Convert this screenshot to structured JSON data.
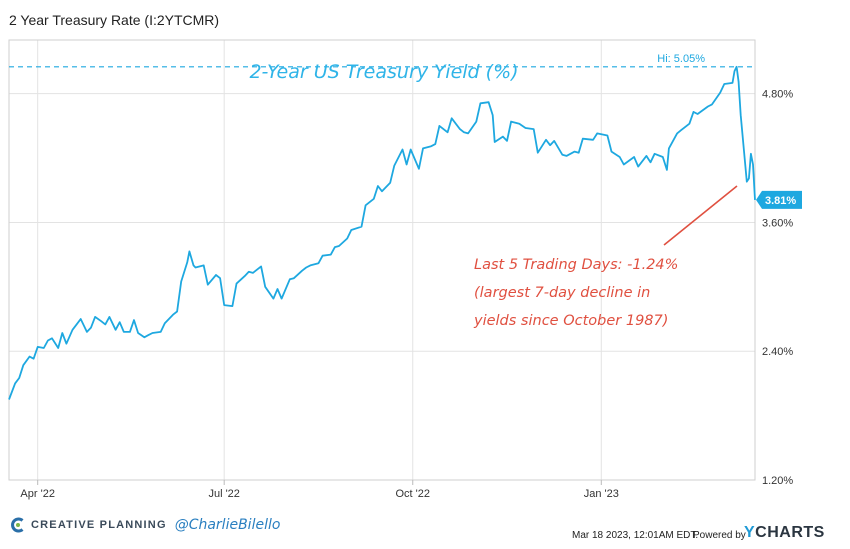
{
  "header": {
    "title": "2 Year Treasury Rate (I:2YTCMR)"
  },
  "colors": {
    "line": "#1ea8e0",
    "annotation_text": "#e05040",
    "annotation_line": "#e05040",
    "badge": "#1ea8e0",
    "grid": "#e3e3e3"
  },
  "footer": {
    "brand": "CREATIVE PLANNING",
    "handle": "@CharlieBilello",
    "timestamp": "Mar 18 2023, 12:01AM EDT.",
    "powered_by": "Powered by",
    "provider_prefix": "Y",
    "provider_rest": "CHARTS"
  },
  "chart_data": {
    "type": "line",
    "title": "2-Year US Treasury Yield (%)",
    "ylim": [
      1.2,
      5.3
    ],
    "xlim": [
      "2022-03-18",
      "2023-03-17"
    ],
    "grid": true,
    "y_ticks": [
      {
        "value": 4.8,
        "label": "4.80%"
      },
      {
        "value": 3.6,
        "label": "3.60%"
      },
      {
        "value": 2.4,
        "label": "2.40%"
      },
      {
        "value": 1.2,
        "label": "1.20%"
      }
    ],
    "x_ticks": [
      {
        "date": "2022-04-01",
        "label": "Apr '22"
      },
      {
        "date": "2022-07-01",
        "label": "Jul '22"
      },
      {
        "date": "2022-10-01",
        "label": "Oct '22"
      },
      {
        "date": "2023-01-01",
        "label": "Jan '23"
      }
    ],
    "hi": {
      "value": 5.05,
      "label": "Hi: 5.05%"
    },
    "last": {
      "value": 3.81,
      "label": "3.81%"
    },
    "annotations": [
      "Last 5 Trading Days: -1.24%",
      "(largest 7-day decline in",
      "yields since October 1987)"
    ],
    "series": [
      {
        "x": [
          "2022-03-18",
          "2022-03-21",
          "2022-03-23",
          "2022-03-25",
          "2022-03-28",
          "2022-03-30",
          "2022-04-01",
          "2022-04-04",
          "2022-04-06",
          "2022-04-08",
          "2022-04-11",
          "2022-04-13",
          "2022-04-15",
          "2022-04-18",
          "2022-04-20",
          "2022-04-22",
          "2022-04-25",
          "2022-04-27",
          "2022-04-29",
          "2022-05-02",
          "2022-05-04",
          "2022-05-06",
          "2022-05-09",
          "2022-05-11",
          "2022-05-13",
          "2022-05-16",
          "2022-05-18",
          "2022-05-20",
          "2022-05-23",
          "2022-05-25",
          "2022-05-27",
          "2022-05-31",
          "2022-06-02",
          "2022-06-06",
          "2022-06-08",
          "2022-06-10",
          "2022-06-13",
          "2022-06-14",
          "2022-06-16",
          "2022-06-17",
          "2022-06-21",
          "2022-06-23",
          "2022-06-27",
          "2022-06-29",
          "2022-07-01",
          "2022-07-05",
          "2022-07-07",
          "2022-07-11",
          "2022-07-13",
          "2022-07-15",
          "2022-07-19",
          "2022-07-21",
          "2022-07-25",
          "2022-07-27",
          "2022-07-29",
          "2022-08-02",
          "2022-08-04",
          "2022-08-08",
          "2022-08-10",
          "2022-08-12",
          "2022-08-16",
          "2022-08-18",
          "2022-08-22",
          "2022-08-24",
          "2022-08-26",
          "2022-08-30",
          "2022-09-01",
          "2022-09-06",
          "2022-09-08",
          "2022-09-12",
          "2022-09-14",
          "2022-09-16",
          "2022-09-20",
          "2022-09-22",
          "2022-09-26",
          "2022-09-28",
          "2022-09-30",
          "2022-10-04",
          "2022-10-06",
          "2022-10-10",
          "2022-10-12",
          "2022-10-14",
          "2022-10-18",
          "2022-10-20",
          "2022-10-24",
          "2022-10-26",
          "2022-10-28",
          "2022-11-01",
          "2022-11-03",
          "2022-11-07",
          "2022-11-09",
          "2022-11-10",
          "2022-11-14",
          "2022-11-16",
          "2022-11-18",
          "2022-11-22",
          "2022-11-25",
          "2022-11-29",
          "2022-12-01",
          "2022-12-05",
          "2022-12-07",
          "2022-12-09",
          "2022-12-13",
          "2022-12-15",
          "2022-12-19",
          "2022-12-21",
          "2022-12-23",
          "2022-12-28",
          "2022-12-30",
          "2023-01-04",
          "2023-01-06",
          "2023-01-10",
          "2023-01-12",
          "2023-01-17",
          "2023-01-19",
          "2023-01-23",
          "2023-01-25",
          "2023-01-27",
          "2023-01-31",
          "2023-02-02",
          "2023-02-03",
          "2023-02-07",
          "2023-02-09",
          "2023-02-13",
          "2023-02-15",
          "2023-02-17",
          "2023-02-22",
          "2023-02-24",
          "2023-02-28",
          "2023-03-02",
          "2023-03-06",
          "2023-03-07",
          "2023-03-08",
          "2023-03-09",
          "2023-03-10",
          "2023-03-13",
          "2023-03-14",
          "2023-03-15",
          "2023-03-16",
          "2023-03-17"
        ],
        "y": [
          1.95,
          2.1,
          2.15,
          2.27,
          2.35,
          2.33,
          2.44,
          2.43,
          2.5,
          2.52,
          2.43,
          2.57,
          2.47,
          2.6,
          2.65,
          2.7,
          2.58,
          2.62,
          2.72,
          2.68,
          2.65,
          2.72,
          2.6,
          2.67,
          2.58,
          2.58,
          2.69,
          2.57,
          2.53,
          2.55,
          2.57,
          2.58,
          2.66,
          2.74,
          2.77,
          3.05,
          3.23,
          3.33,
          3.2,
          3.18,
          3.2,
          3.02,
          3.11,
          3.08,
          2.83,
          2.82,
          3.03,
          3.1,
          3.14,
          3.13,
          3.19,
          3.0,
          2.89,
          2.98,
          2.89,
          3.07,
          3.08,
          3.15,
          3.18,
          3.2,
          3.22,
          3.29,
          3.3,
          3.37,
          3.38,
          3.45,
          3.53,
          3.56,
          3.76,
          3.82,
          3.94,
          3.89,
          3.97,
          4.13,
          4.28,
          4.14,
          4.28,
          4.1,
          4.29,
          4.31,
          4.33,
          4.5,
          4.44,
          4.57,
          4.47,
          4.44,
          4.43,
          4.54,
          4.71,
          4.72,
          4.6,
          4.35,
          4.4,
          4.36,
          4.54,
          4.52,
          4.48,
          4.47,
          4.25,
          4.37,
          4.32,
          4.36,
          4.23,
          4.22,
          4.26,
          4.25,
          4.38,
          4.37,
          4.43,
          4.41,
          4.26,
          4.21,
          4.14,
          4.21,
          4.12,
          4.22,
          4.16,
          4.24,
          4.21,
          4.09,
          4.29,
          4.43,
          4.46,
          4.52,
          4.63,
          4.61,
          4.68,
          4.7,
          4.81,
          4.89,
          4.9,
          5.01,
          5.05,
          4.91,
          4.6,
          3.98,
          4.01,
          4.24,
          4.14,
          3.81
        ]
      }
    ]
  }
}
